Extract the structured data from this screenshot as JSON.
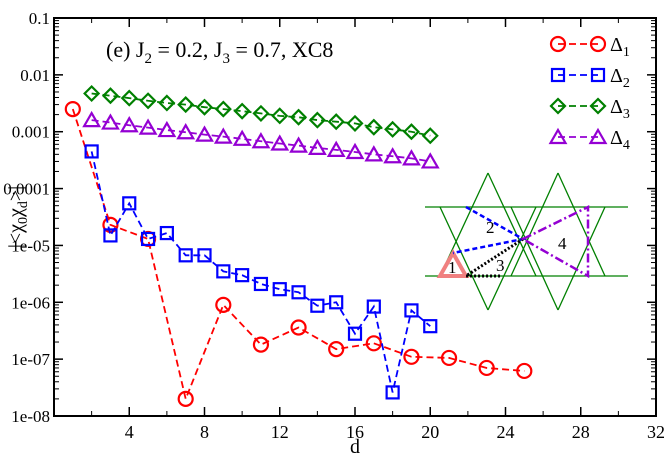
{
  "chart_data": {
    "type": "scatter",
    "annotation": "(e)  J",
    "annotation_j2_sub": "2",
    "annotation_mid": " = 0.2, J",
    "annotation_j3_sub": "3",
    "annotation_end": " = 0.7, XC8",
    "xlabel": "d",
    "ylabel_pre": "|<χ",
    "ylabel_sub0": "0",
    "ylabel_mid": "χ",
    "ylabel_subd": "d",
    "ylabel_post": ">|",
    "xlim": [
      0,
      32
    ],
    "ylim": [
      1e-08,
      0.1
    ],
    "log_y": true,
    "x_ticks": [
      4,
      8,
      12,
      16,
      20,
      24,
      28,
      32
    ],
    "y_ticks": [
      {
        "value": 1e-08,
        "label": "1e-08"
      },
      {
        "value": 1e-07,
        "label": "1e-07"
      },
      {
        "value": 1e-06,
        "label": "1e-06"
      },
      {
        "value": 1e-05,
        "label": "1e-05"
      },
      {
        "value": 0.0001,
        "label": "0.0001"
      },
      {
        "value": 0.001,
        "label": "0.001"
      },
      {
        "value": 0.01,
        "label": "0.01"
      },
      {
        "value": 0.1,
        "label": "0.1"
      }
    ],
    "legend_position": "top-right",
    "series": [
      {
        "name": "Δ",
        "sub": "1",
        "marker": "circle",
        "color": "#ff0000",
        "x": [
          1,
          3,
          5,
          7,
          9,
          11,
          13,
          15,
          17,
          19,
          21,
          23,
          25
        ],
        "y": [
          0.0025,
          2.3e-05,
          1.3e-05,
          2e-08,
          9e-07,
          1.8e-07,
          3.6e-07,
          1.5e-07,
          1.9e-07,
          1.1e-07,
          1.05e-07,
          7e-08,
          6.2e-08
        ]
      },
      {
        "name": "Δ",
        "sub": "2",
        "marker": "square",
        "color": "#0000ff",
        "x": [
          2,
          3,
          4,
          5,
          6,
          7,
          8,
          9,
          10,
          11,
          12,
          13,
          14,
          15,
          16,
          17,
          18,
          19,
          20
        ],
        "y": [
          0.00045,
          1.5e-05,
          5.5e-05,
          1.3e-05,
          1.65e-05,
          6.7e-06,
          6.7e-06,
          3.5e-06,
          3e-06,
          2.1e-06,
          1.7e-06,
          1.5e-06,
          8.7e-07,
          1e-06,
          2.8e-07,
          8.4e-07,
          2.6e-08,
          7.2e-07,
          3.8e-07
        ]
      },
      {
        "name": "Δ",
        "sub": "3",
        "marker": "diamond",
        "color": "#008000",
        "x": [
          2,
          3,
          4,
          5,
          6,
          7,
          8,
          9,
          10,
          11,
          12,
          13,
          14,
          15,
          16,
          17,
          18,
          19,
          20
        ],
        "y": [
          0.0047,
          0.0043,
          0.0039,
          0.0035,
          0.0032,
          0.003,
          0.0027,
          0.0025,
          0.0023,
          0.0021,
          0.0019,
          0.0018,
          0.0016,
          0.0015,
          0.0014,
          0.0012,
          0.0011,
          0.001,
          0.00085
        ]
      },
      {
        "name": "Δ",
        "sub": "4",
        "marker": "triangle",
        "color": "#9400d3",
        "x": [
          2,
          3,
          4,
          5,
          6,
          7,
          8,
          9,
          10,
          11,
          12,
          13,
          14,
          15,
          16,
          17,
          18,
          19,
          20
        ],
        "y": [
          0.0016,
          0.00145,
          0.0013,
          0.00118,
          0.00107,
          0.00098,
          0.00089,
          0.00082,
          0.00075,
          0.00068,
          0.00062,
          0.00057,
          0.00052,
          0.00048,
          0.00044,
          0.0004,
          0.00037,
          0.00034,
          0.0003
        ]
      }
    ],
    "inset_labels": [
      "1",
      "2",
      "3",
      "4"
    ],
    "colors": {
      "lattice": "#008000",
      "bond1": "#f08080",
      "bond2": "#0000ff",
      "bond3": "#000000",
      "bond4": "#9400d3"
    }
  }
}
